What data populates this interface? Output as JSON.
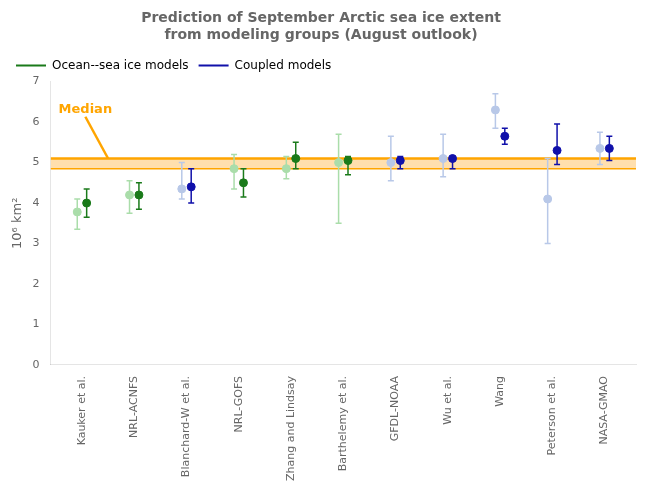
{
  "chart_data": {
    "type": "scatter",
    "title": "Prediction of September Arctic sea ice extent\nfrom modeling groups (August outlook)",
    "ylabel": "10⁶ km²",
    "categories": [
      "Kauker et al.",
      "NRL-ACNFS",
      "Blanchard-W et al.",
      "NRL-GOFS",
      "Zhang and Lindsay",
      "Barthelemy et al.",
      "GFDL-NOAA",
      "Wu et al.",
      "Wang",
      "Peterson et al.",
      "NASA-GMAO"
    ],
    "series": [
      {
        "name": "Ocean--sea ice models",
        "color": "#1a7a1a",
        "estimates": [
          {
            "color": "#aaddaa",
            "values": [
              3.78,
              4.2,
              null,
              4.85,
              4.85,
              5.0,
              null,
              null,
              null,
              null,
              null
            ],
            "low": [
              3.35,
              3.75,
              null,
              4.35,
              4.6,
              3.5,
              null,
              null,
              null,
              null,
              null
            ],
            "high": [
              4.1,
              4.55,
              null,
              5.2,
              5.15,
              5.7,
              null,
              null,
              null,
              null,
              null
            ]
          },
          {
            "color": "#1a7a1a",
            "values": [
              4.0,
              4.2,
              null,
              4.5,
              5.1,
              5.05,
              null,
              null,
              null,
              null,
              null
            ],
            "low": [
              3.65,
              3.85,
              null,
              4.15,
              4.85,
              4.7,
              null,
              null,
              null,
              null,
              null
            ],
            "high": [
              4.35,
              4.5,
              null,
              4.85,
              5.5,
              5.15,
              null,
              null,
              null,
              null,
              null
            ]
          }
        ]
      },
      {
        "name": "Coupled models",
        "color": "#1010aa",
        "estimates": [
          {
            "color": "#b8c8e8",
            "values": [
              null,
              null,
              4.35,
              null,
              null,
              null,
              5.0,
              5.1,
              6.3,
              4.1,
              5.35
            ],
            "low": [
              null,
              null,
              4.1,
              null,
              null,
              null,
              4.55,
              4.65,
              5.85,
              3.0,
              4.95
            ],
            "high": [
              null,
              null,
              5.0,
              null,
              null,
              null,
              5.65,
              5.7,
              6.7,
              5.1,
              5.75
            ]
          },
          {
            "color": "#1010aa",
            "values": [
              null,
              null,
              4.4,
              null,
              null,
              null,
              5.05,
              5.1,
              5.65,
              5.3,
              5.35
            ],
            "low": [
              null,
              null,
              4.0,
              null,
              null,
              null,
              4.85,
              4.85,
              5.45,
              4.95,
              5.05
            ],
            "high": [
              null,
              null,
              4.85,
              null,
              null,
              null,
              5.15,
              5.15,
              5.85,
              5.95,
              5.65
            ]
          }
        ]
      }
    ],
    "median": {
      "range": [
        4.85,
        5.1
      ],
      "text": "Median",
      "color": "orange",
      "band_color": "#ffd9a0"
    },
    "ylim": [
      0,
      7
    ],
    "yticks": [
      0,
      1,
      2,
      3,
      4,
      5,
      6,
      7
    ],
    "grid": false,
    "legend": "upper left"
  }
}
